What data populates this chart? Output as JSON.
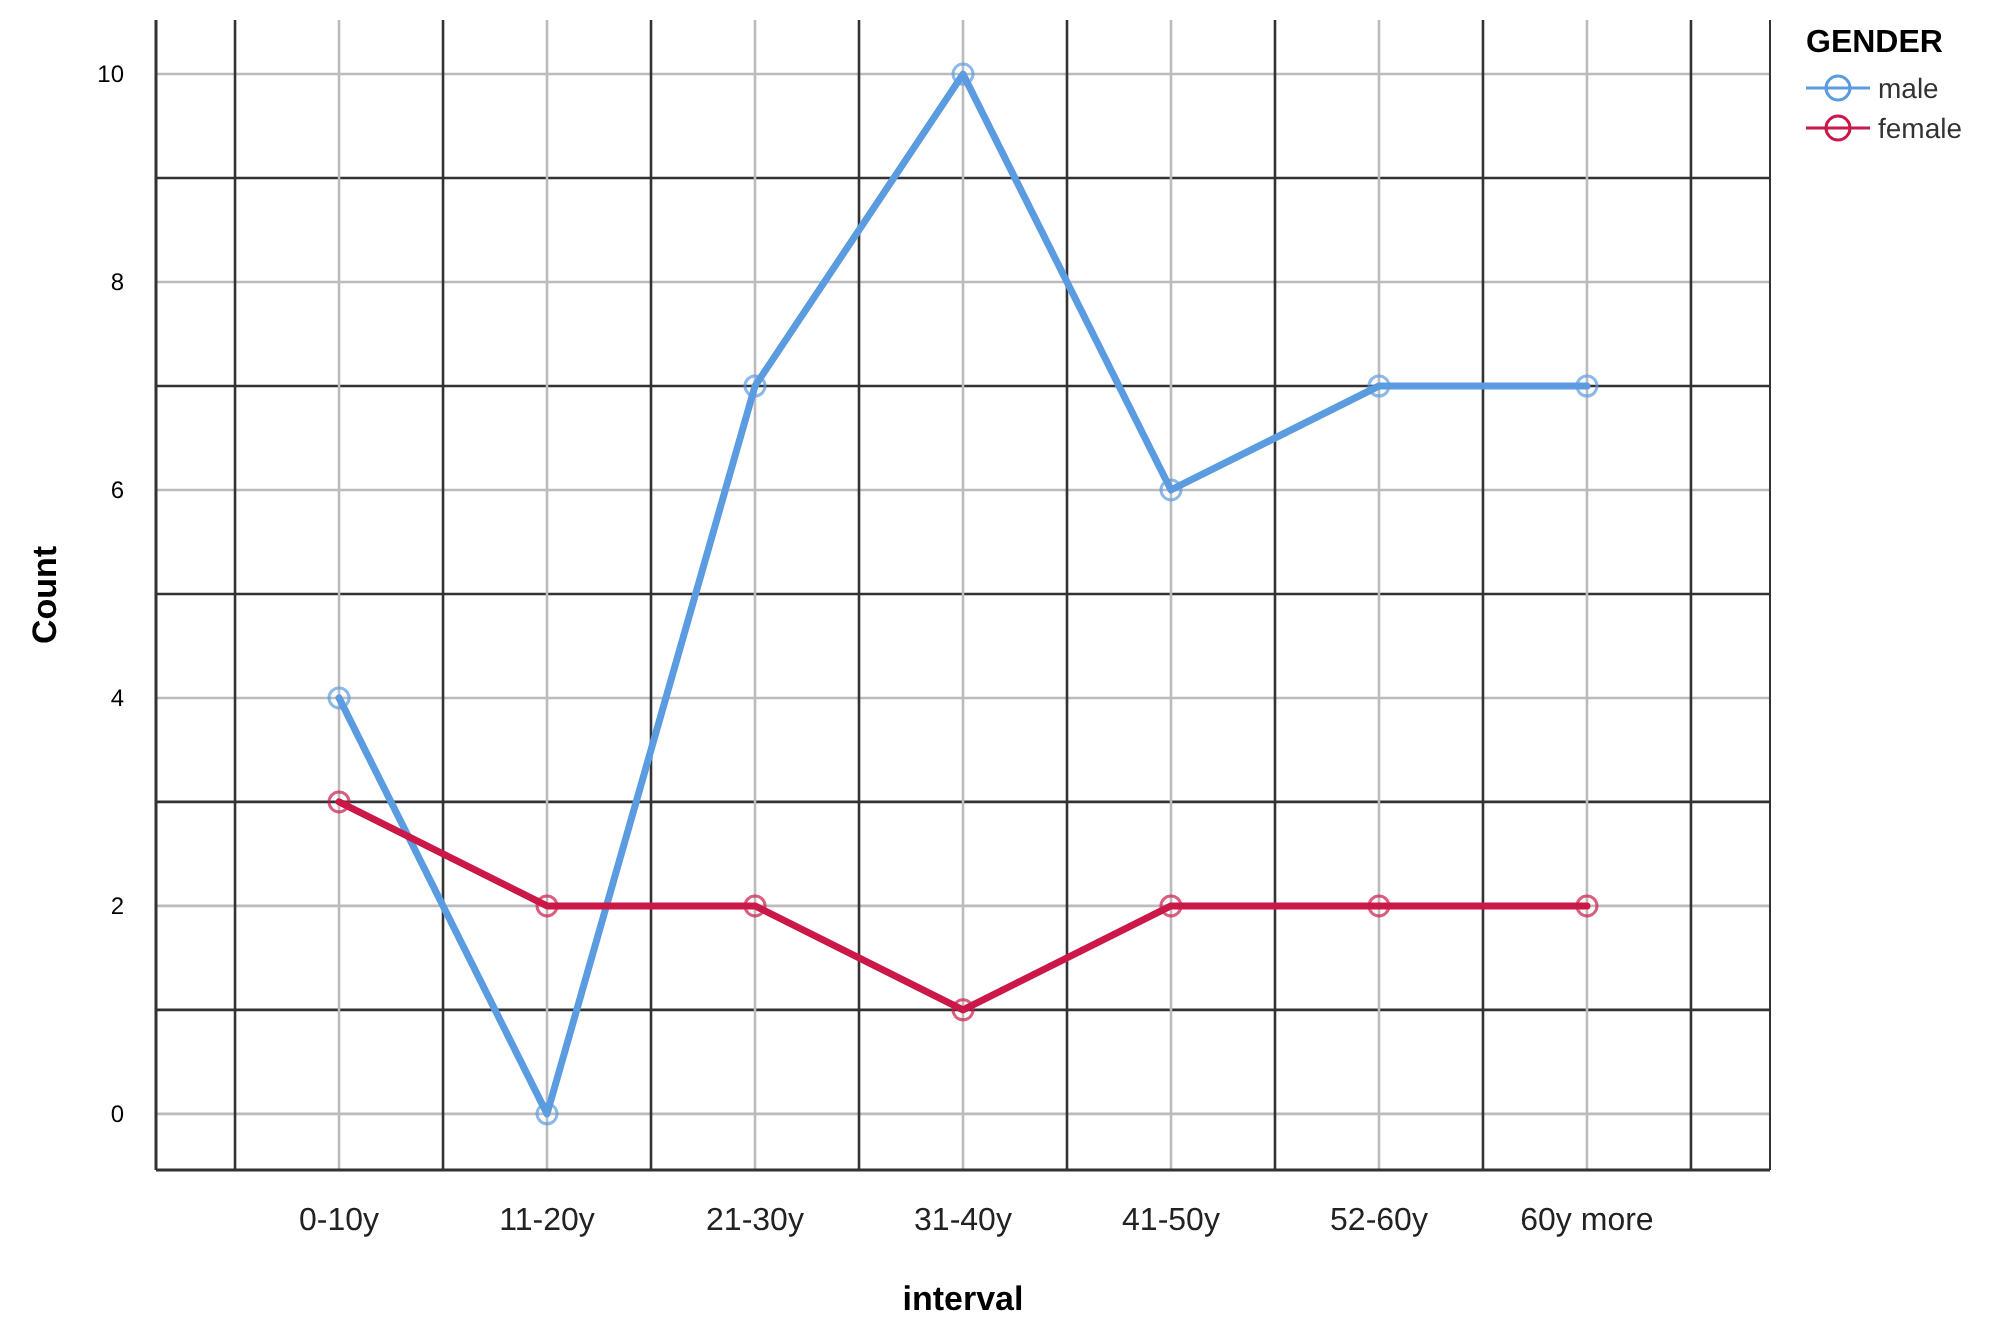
{
  "chart_data": {
    "type": "line",
    "xlabel": "interval",
    "ylabel": "Count",
    "legend_title": "GENDER",
    "legend": "top right",
    "grid": true,
    "marker": "circle",
    "line_style": "solid",
    "categories": [
      "0-10y",
      "11-20y",
      "21-30y",
      "31-40y",
      "41-50y",
      "52-60y",
      "60y more"
    ],
    "ylim": [
      -0.54,
      10.52
    ],
    "yticks": [
      0,
      {
        "value": 1,
        "label": null
      },
      2,
      {
        "value": 3,
        "label": null
      },
      4,
      {
        "value": 5,
        "label": null
      },
      6,
      {
        "value": 7,
        "label": null
      },
      8,
      {
        "value": 9,
        "label": null
      },
      10
    ],
    "series": [
      {
        "name": "male",
        "color": "#5b9be0",
        "values": [
          4,
          0,
          7,
          10,
          6,
          7,
          7
        ]
      },
      {
        "name": "female",
        "color": "#cc1848",
        "values": [
          3,
          2,
          2,
          1,
          2,
          2,
          2
        ]
      }
    ]
  }
}
